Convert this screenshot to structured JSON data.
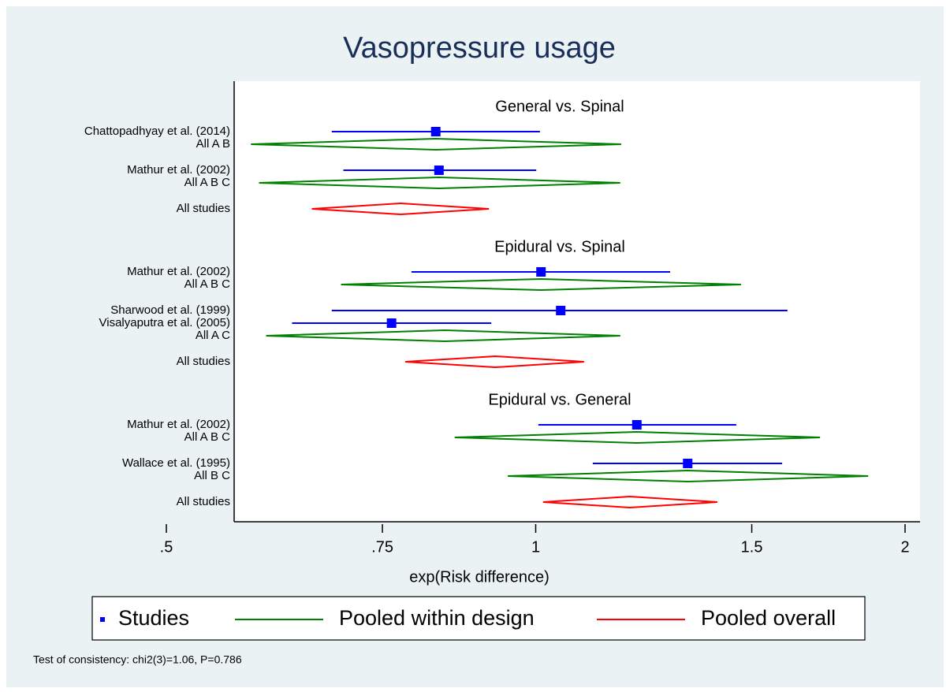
{
  "chart_data": {
    "type": "forest",
    "title": "Vasopressure usage",
    "x_label": "exp(Risk difference)",
    "note": "Test of consistency: chi2(3)=1.06, P=0.786",
    "log_x": true,
    "xlim": [
      0.5,
      2
    ],
    "xticks": [
      {
        "value": 0.5,
        "label": ".5"
      },
      {
        "value": 0.75,
        "label": ".75"
      },
      1,
      1.5,
      2
    ],
    "series": [
      {
        "name": "Studies",
        "color": "#0000ff"
      },
      {
        "name": "Pooled within design",
        "color": "#008000"
      },
      {
        "name": "Pooled overall",
        "color": "#ff0000"
      }
    ],
    "groups": [
      {
        "title": "General vs. Spinal",
        "rows": [
          {
            "label": "Chattopadhyay et al. (2014)",
            "series": 0,
            "estimate": 0.829,
            "lower": 0.682,
            "upper": 1.008
          },
          {
            "label": "All A B",
            "series": 1,
            "estimate": 0.829,
            "lower": 0.586,
            "upper": 1.174
          },
          {
            "label": "Mathur et al. (2002)",
            "series": 0,
            "estimate": 0.834,
            "lower": 0.697,
            "upper": 1.001
          },
          {
            "label": "All A B C",
            "series": 1,
            "estimate": 0.834,
            "lower": 0.595,
            "upper": 1.172
          },
          {
            "label": "All studies",
            "series": 2,
            "estimate": 0.776,
            "lower": 0.657,
            "upper": 0.916
          }
        ]
      },
      {
        "title": "Epidural vs. Spinal",
        "rows": [
          {
            "label": "Mathur et al. (2002)",
            "series": 0,
            "estimate": 1.01,
            "lower": 0.792,
            "upper": 1.287
          },
          {
            "label": "All A B C",
            "series": 1,
            "estimate": 1.01,
            "lower": 0.694,
            "upper": 1.47
          },
          {
            "label": "Sharwood et al. (1999)",
            "series": 0,
            "estimate": 1.048,
            "lower": 0.682,
            "upper": 1.604
          },
          {
            "label": "Visalyaputra et al. (2005)",
            "series": 0,
            "estimate": 0.763,
            "lower": 0.633,
            "upper": 0.92
          },
          {
            "label": "All A C",
            "series": 1,
            "estimate": 0.843,
            "lower": 0.603,
            "upper": 1.172
          },
          {
            "label": "All studies",
            "series": 2,
            "estimate": 0.927,
            "lower": 0.783,
            "upper": 1.095
          }
        ]
      },
      {
        "title": "Epidural vs. General",
        "rows": [
          {
            "label": "Mathur et al. (2002)",
            "series": 0,
            "estimate": 1.209,
            "lower": 1.005,
            "upper": 1.457
          },
          {
            "label": "All A B C",
            "series": 1,
            "estimate": 1.209,
            "lower": 0.859,
            "upper": 1.705
          },
          {
            "label": "Wallace et al. (1995)",
            "series": 0,
            "estimate": 1.33,
            "lower": 1.113,
            "upper": 1.588
          },
          {
            "label": "All B C",
            "series": 1,
            "estimate": 1.33,
            "lower": 0.949,
            "upper": 1.866
          },
          {
            "label": "All studies",
            "series": 2,
            "estimate": 1.193,
            "lower": 1.014,
            "upper": 1.406
          }
        ]
      }
    ]
  }
}
